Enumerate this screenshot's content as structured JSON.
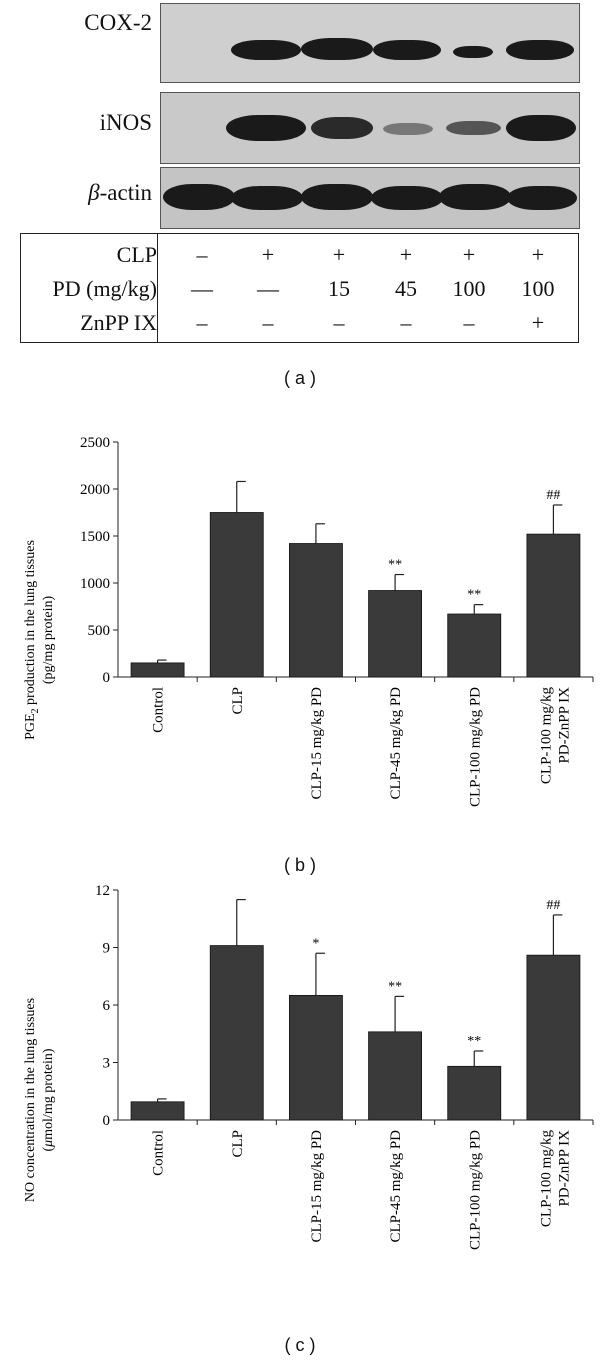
{
  "panel_a": {
    "blots": [
      {
        "label": "COX-2"
      },
      {
        "label": "iNOS"
      },
      {
        "label_italic": "β",
        "label_rest": "-actin"
      }
    ],
    "table": {
      "rows": [
        {
          "label": "CLP",
          "cells": [
            "–",
            "+",
            "+",
            "+",
            "+",
            "+"
          ]
        },
        {
          "label": "PD (mg/kg)",
          "cells": [
            "—",
            "—",
            "15",
            "45",
            "100",
            "100"
          ]
        },
        {
          "label": "ZnPP IX",
          "cells": [
            "–",
            "–",
            "–",
            "–",
            "–",
            "+"
          ]
        }
      ]
    },
    "caption": "( a )"
  },
  "chart_data": [
    {
      "type": "bar",
      "categories": [
        "Control",
        "CLP",
        "CLP-15 mg/kg PD",
        "CLP-45 mg/kg PD",
        "CLP-100 mg/kg PD",
        "CLP-100 mg/kg|PD-ZnPP IX"
      ],
      "values": [
        150,
        1750,
        1420,
        920,
        670,
        1520
      ],
      "errors": [
        30,
        330,
        210,
        170,
        100,
        310
      ],
      "annotations": [
        "",
        "",
        "",
        "**",
        "**",
        "##"
      ],
      "ylabel_line1_pre": "PGE",
      "ylabel_line1_sub": "2",
      "ylabel_line1_post": " production in the lung tissues",
      "ylabel_line2": "(pg/mg protein)",
      "yticks": [
        0,
        500,
        1000,
        1500,
        2000,
        2500
      ],
      "ylim": [
        0,
        2500
      ],
      "bar_color": "#3a3a3a",
      "caption": "( b )"
    },
    {
      "type": "bar",
      "categories": [
        "Control",
        "CLP",
        "CLP-15 mg/kg PD",
        "CLP-45 mg/kg PD",
        "CLP-100 mg/kg PD",
        "CLP-100 mg/kg|PD-ZnPP IX"
      ],
      "values": [
        0.95,
        9.1,
        6.5,
        4.6,
        2.8,
        8.6
      ],
      "errors": [
        0.15,
        2.4,
        2.2,
        1.85,
        0.8,
        2.1
      ],
      "annotations": [
        "",
        "",
        "*",
        "**",
        "**",
        "##"
      ],
      "ylabel_line1": "NO concentration in the lung tissues",
      "ylabel_line2_pre": "(",
      "ylabel_line2_mu": "μ",
      "ylabel_line2_post": "mol/mg protein)",
      "yticks": [
        0,
        3,
        6,
        9,
        12
      ],
      "ylim": [
        0,
        12
      ],
      "bar_color": "#3a3a3a",
      "caption": "( c )"
    }
  ]
}
